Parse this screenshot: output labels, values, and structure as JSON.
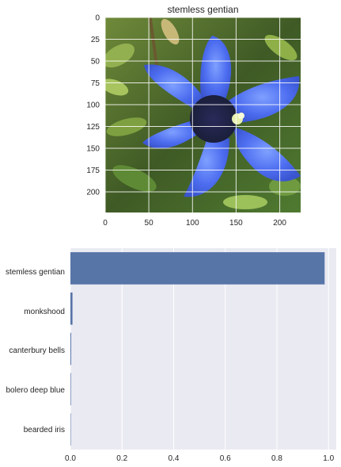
{
  "chart_data": [
    {
      "type": "image",
      "title": "stemless gentian",
      "image_description_icon": "flower-photo",
      "x_ticks": [
        0,
        50,
        100,
        150,
        200
      ],
      "y_ticks": [
        0,
        25,
        50,
        75,
        100,
        125,
        150,
        175,
        200
      ],
      "xlim": [
        0,
        224
      ],
      "ylim": [
        224,
        0
      ],
      "grid": true
    },
    {
      "type": "bar",
      "orientation": "horizontal",
      "categories": [
        "stemless gentian",
        "monkshood",
        "canterbury bells",
        "bolero deep blue",
        "bearded iris"
      ],
      "values": [
        0.985,
        0.008,
        0.003,
        0.002,
        0.0005
      ],
      "x_ticks": [
        "0.0",
        "0.2",
        "0.4",
        "0.6",
        "0.8",
        "1.0"
      ],
      "xlim": [
        0,
        1.03
      ],
      "bar_color": "#5875a8",
      "background_color": "#eaeaf2",
      "grid": true
    }
  ]
}
